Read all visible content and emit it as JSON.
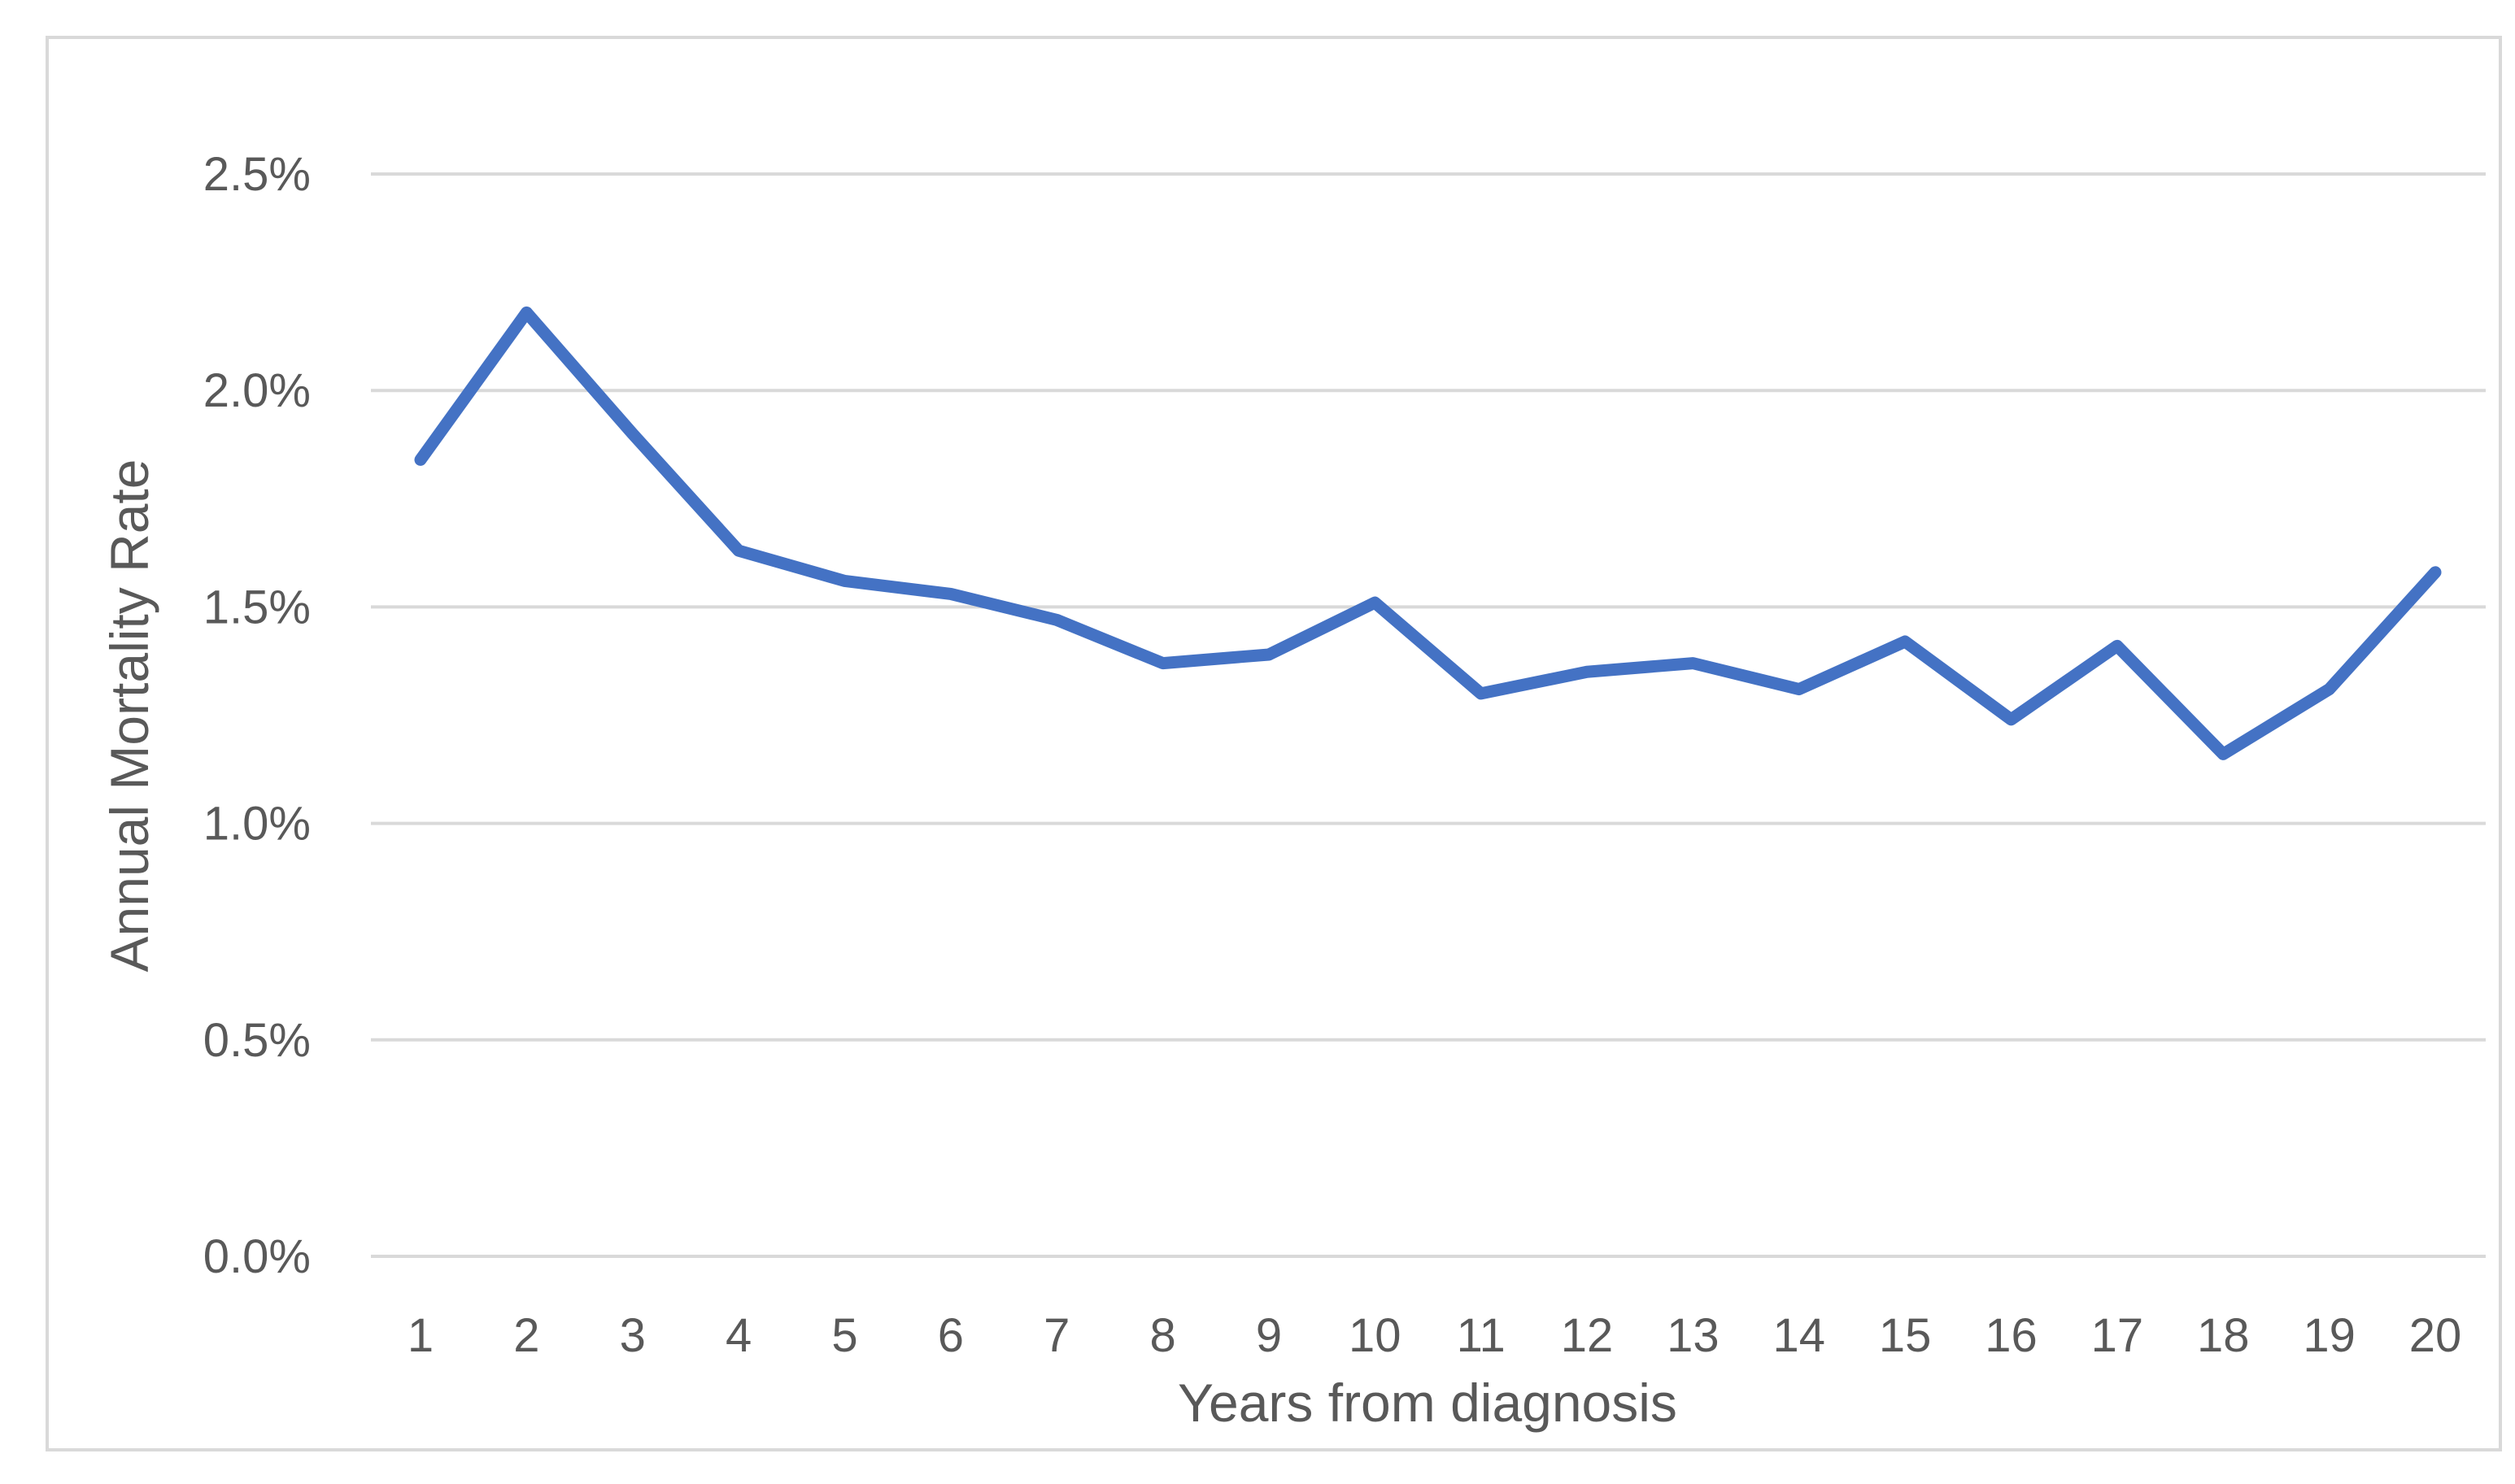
{
  "chart_data": {
    "type": "line",
    "title": "",
    "xlabel": "Years from diagnosis",
    "ylabel": "Annual Mortality Rate",
    "categories": [
      "1",
      "2",
      "3",
      "4",
      "5",
      "6",
      "7",
      "8",
      "9",
      "10",
      "11",
      "12",
      "13",
      "14",
      "15",
      "16",
      "17",
      "18",
      "19",
      "20"
    ],
    "series": [
      {
        "values": [
          1.84,
          2.18,
          1.9,
          1.63,
          1.56,
          1.53,
          1.47,
          1.37,
          1.39,
          1.51,
          1.3,
          1.35,
          1.37,
          1.31,
          1.42,
          1.24,
          1.41,
          1.16,
          1.31,
          1.58
        ],
        "color": "#4472c4"
      }
    ],
    "ylim": [
      0,
      2.5
    ],
    "yticks": [
      "0.0%",
      "0.5%",
      "1.0%",
      "1.5%",
      "2.0%",
      "2.5%"
    ],
    "grid": true,
    "legend": "none"
  }
}
